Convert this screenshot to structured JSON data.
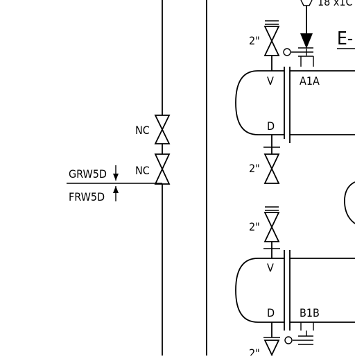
{
  "drawing": {
    "top_partial_label": "18 x1C",
    "equipment_tag_partial": "E-",
    "left_line": {
      "valve_upper_label": "NC",
      "valve_lower_label": "NC",
      "branch_label_top": "GRW5D",
      "branch_label_bottom": "FRW5D"
    },
    "exchanger_a": {
      "vent_label": "V",
      "drain_label": "D",
      "nozzle_label": "A1A",
      "vent_valve_size": "2\"",
      "drain_valve_size": "2\""
    },
    "exchanger_b": {
      "vent_label": "V",
      "drain_label": "D",
      "nozzle_label": "B1B",
      "vent_valve_size": "2\"",
      "drain_valve_size": "2\""
    }
  }
}
